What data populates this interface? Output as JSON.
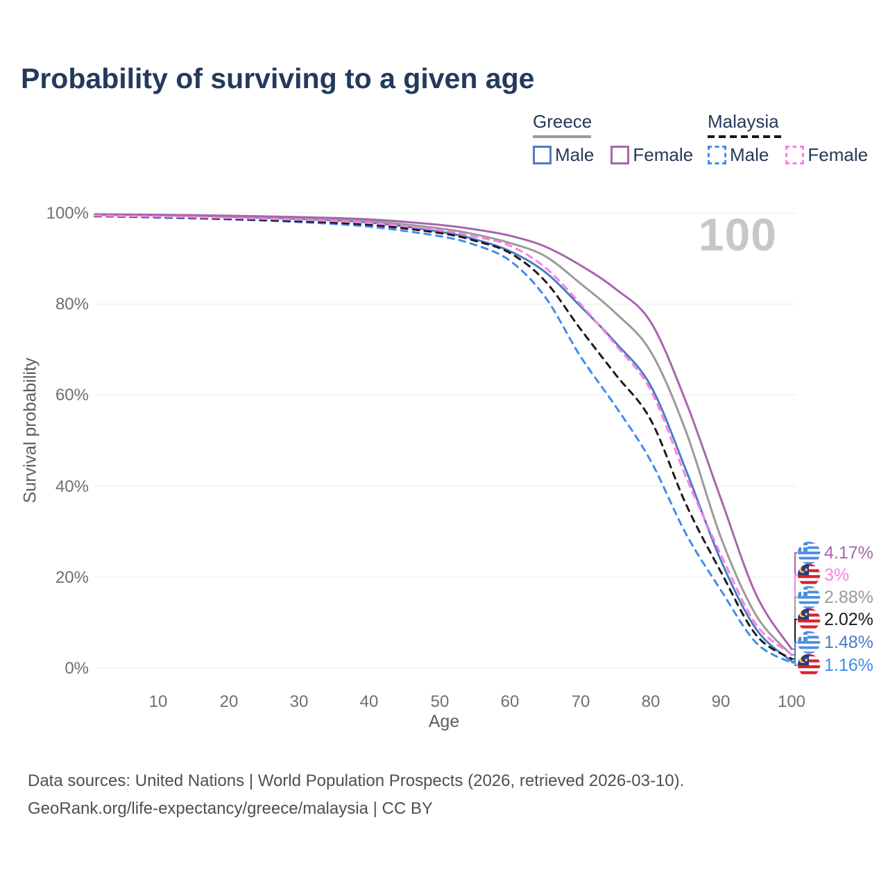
{
  "header": {
    "title": "Probability of surviving to a given age"
  },
  "legend": {
    "groups": [
      {
        "label": "Greece",
        "line_style": "solid",
        "line_color": "#9a9a9a",
        "items": [
          {
            "label": "Male",
            "color": "#4a7cc0"
          },
          {
            "label": "Female",
            "color": "#a865ae"
          }
        ]
      },
      {
        "label": "Malaysia",
        "line_style": "dashed",
        "line_color": "#161616",
        "items": [
          {
            "label": "Male",
            "color": "#3e8bf2"
          },
          {
            "label": "Female",
            "color": "#ff7ee3"
          }
        ]
      }
    ]
  },
  "watermark": "100",
  "axes": {
    "y_label": "Survival probability",
    "x_label": "Age",
    "y_ticks": [
      "0%",
      "20%",
      "40%",
      "60%",
      "80%",
      "100%"
    ],
    "x_ticks": [
      "10",
      "20",
      "30",
      "40",
      "50",
      "60",
      "70",
      "80",
      "90",
      "100"
    ]
  },
  "end_labels": [
    {
      "country": "greece",
      "flag_icon": "greece-flag-icon",
      "value": "4.17%",
      "color": "#a865ae"
    },
    {
      "country": "malaysia",
      "flag_icon": "malaysia-flag-icon",
      "value": "3%",
      "color": "#ff7ee3"
    },
    {
      "country": "greece",
      "flag_icon": "greece-flag-icon",
      "value": "2.88%",
      "color": "#9a9a9a"
    },
    {
      "country": "malaysia",
      "flag_icon": "malaysia-flag-icon",
      "value": "2.02%",
      "color": "#1a1a1a"
    },
    {
      "country": "greece",
      "flag_icon": "greece-flag-icon",
      "value": "1.48%",
      "color": "#4a7cc0"
    },
    {
      "country": "malaysia",
      "flag_icon": "malaysia-flag-icon",
      "value": "1.16%",
      "color": "#3e8bf2"
    }
  ],
  "footer": {
    "line1": "Data sources: United Nations | World Population Prospects (2026, retrieved 2026-03-10).",
    "line2": "GeoRank.org/life-expectancy/greece/malaysia | CC BY"
  },
  "chart_data": {
    "type": "line",
    "title": "Probability of surviving to a given age",
    "xlabel": "Age",
    "ylabel": "Survival probability",
    "xlim": [
      1,
      100
    ],
    "ylim": [
      0,
      100
    ],
    "grid": true,
    "legend_position": "top-right",
    "x": [
      1,
      10,
      20,
      30,
      40,
      50,
      55,
      60,
      65,
      70,
      75,
      80,
      85,
      90,
      95,
      100
    ],
    "series": [
      {
        "name": "Greece Female",
        "country": "Greece",
        "sex": "Female",
        "color": "#a865ae",
        "line_style": "solid",
        "end_value_label": "4.17%",
        "values": [
          99.7,
          99.6,
          99.4,
          99.1,
          98.6,
          97.4,
          96.4,
          95.0,
          92.6,
          88.5,
          83.3,
          76.0,
          58.5,
          37.0,
          16.0,
          4.17
        ]
      },
      {
        "name": "Malaysia Female",
        "country": "Malaysia",
        "sex": "Female",
        "color": "#ff7ee3",
        "line_style": "dashed",
        "end_value_label": "3%",
        "values": [
          99.4,
          99.2,
          98.9,
          98.5,
          97.8,
          96.2,
          94.8,
          92.8,
          88.0,
          80.0,
          71.0,
          61.0,
          42.0,
          24.8,
          9.5,
          3.0
        ]
      },
      {
        "name": "Greece Both sexes",
        "country": "Greece",
        "sex": "Both",
        "color": "#9a9a9a",
        "line_style": "solid",
        "end_value_label": "2.88%",
        "values": [
          99.6,
          99.5,
          99.3,
          98.9,
          98.2,
          96.6,
          95.3,
          93.4,
          90.5,
          84.5,
          78.0,
          69.5,
          52.0,
          28.5,
          11.5,
          2.88
        ]
      },
      {
        "name": "Malaysia Both sexes",
        "country": "Malaysia",
        "sex": "Both",
        "color": "#1a1a1a",
        "line_style": "dashed",
        "end_value_label": "2.02%",
        "values": [
          99.3,
          99.1,
          98.7,
          98.2,
          97.4,
          95.6,
          93.9,
          91.2,
          85.0,
          74.5,
          64.5,
          54.5,
          36.0,
          21.0,
          7.2,
          2.02
        ]
      },
      {
        "name": "Greece Male",
        "country": "Greece",
        "sex": "Male",
        "color": "#4a7cc0",
        "line_style": "solid",
        "end_value_label": "1.48%",
        "values": [
          99.6,
          99.5,
          99.2,
          98.7,
          97.9,
          95.9,
          94.2,
          91.6,
          87.0,
          79.5,
          71.5,
          62.0,
          43.5,
          23.5,
          8.5,
          1.48
        ]
      },
      {
        "name": "Malaysia Male",
        "country": "Malaysia",
        "sex": "Male",
        "color": "#3e8bf2",
        "line_style": "dashed",
        "end_value_label": "1.16%",
        "values": [
          99.3,
          99.0,
          98.6,
          98.0,
          97.0,
          94.9,
          93.0,
          89.5,
          81.5,
          68.5,
          57.5,
          45.5,
          29.5,
          17.0,
          5.5,
          1.16
        ]
      }
    ]
  }
}
